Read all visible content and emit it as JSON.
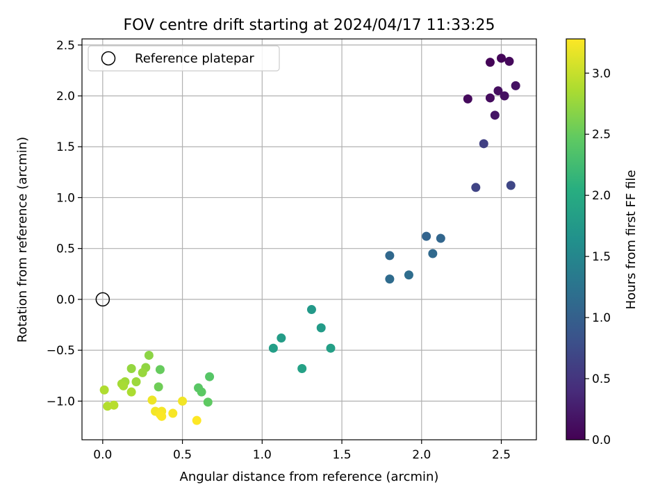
{
  "chart_data": {
    "type": "scatter",
    "title": "FOV centre drift starting at 2024/04/17 11:33:25",
    "xlabel": "Angular distance from reference (arcmin)",
    "ylabel": "Rotation from reference (arcmin)",
    "xlim": [
      -0.13,
      2.72
    ],
    "ylim": [
      -1.38,
      2.56
    ],
    "xticks": [
      0.0,
      0.5,
      1.0,
      1.5,
      2.0,
      2.5
    ],
    "xtick_labels": [
      "0.0",
      "0.5",
      "1.0",
      "1.5",
      "2.0",
      "2.5"
    ],
    "yticks": [
      -1.0,
      -0.5,
      0.0,
      0.5,
      1.0,
      1.5,
      2.0,
      2.5
    ],
    "ytick_labels": [
      "−1.0",
      "−0.5",
      "0.0",
      "0.5",
      "1.0",
      "1.5",
      "2.0",
      "2.5"
    ],
    "grid": true,
    "legend": {
      "placement": "top-left",
      "entries": [
        {
          "label": "Reference platepar",
          "marker": "open-circle"
        }
      ]
    },
    "reference_point": {
      "x": 0.0,
      "y": 0.0
    },
    "colorbar": {
      "label": "Hours from first FF file",
      "colormap": "viridis",
      "range": [
        0.0,
        3.28
      ],
      "ticks": [
        0.0,
        0.5,
        1.0,
        1.5,
        2.0,
        2.5,
        3.0
      ],
      "tick_labels": [
        "0.0",
        "0.5",
        "1.0",
        "1.5",
        "2.0",
        "2.5",
        "3.0"
      ]
    },
    "points": [
      {
        "x": 2.43,
        "y": 2.33,
        "c": 0.03
      },
      {
        "x": 2.5,
        "y": 2.37,
        "c": 0.05
      },
      {
        "x": 2.55,
        "y": 2.34,
        "c": 0.07
      },
      {
        "x": 2.29,
        "y": 1.97,
        "c": 0.08
      },
      {
        "x": 2.43,
        "y": 1.98,
        "c": 0.1
      },
      {
        "x": 2.48,
        "y": 2.05,
        "c": 0.12
      },
      {
        "x": 2.52,
        "y": 2.0,
        "c": 0.14
      },
      {
        "x": 2.59,
        "y": 2.1,
        "c": 0.16
      },
      {
        "x": 2.46,
        "y": 1.81,
        "c": 0.18
      },
      {
        "x": 2.39,
        "y": 1.53,
        "c": 0.62
      },
      {
        "x": 2.34,
        "y": 1.1,
        "c": 0.66
      },
      {
        "x": 2.56,
        "y": 1.12,
        "c": 0.7
      },
      {
        "x": 2.03,
        "y": 0.62,
        "c": 1.05
      },
      {
        "x": 2.12,
        "y": 0.6,
        "c": 1.07
      },
      {
        "x": 1.8,
        "y": 0.43,
        "c": 1.1
      },
      {
        "x": 2.07,
        "y": 0.45,
        "c": 1.12
      },
      {
        "x": 1.8,
        "y": 0.2,
        "c": 1.14
      },
      {
        "x": 1.92,
        "y": 0.24,
        "c": 1.16
      },
      {
        "x": 1.31,
        "y": -0.1,
        "c": 1.75
      },
      {
        "x": 1.37,
        "y": -0.28,
        "c": 1.78
      },
      {
        "x": 1.12,
        "y": -0.38,
        "c": 1.8
      },
      {
        "x": 1.07,
        "y": -0.48,
        "c": 1.82
      },
      {
        "x": 1.43,
        "y": -0.48,
        "c": 1.84
      },
      {
        "x": 1.25,
        "y": -0.68,
        "c": 1.86
      },
      {
        "x": 0.67,
        "y": -0.76,
        "c": 2.4
      },
      {
        "x": 0.6,
        "y": -0.87,
        "c": 2.42
      },
      {
        "x": 0.62,
        "y": -0.91,
        "c": 2.44
      },
      {
        "x": 0.66,
        "y": -1.01,
        "c": 2.46
      },
      {
        "x": 0.36,
        "y": -0.69,
        "c": 2.5
      },
      {
        "x": 0.35,
        "y": -0.86,
        "c": 2.55
      },
      {
        "x": 0.29,
        "y": -0.55,
        "c": 2.7
      },
      {
        "x": 0.27,
        "y": -0.67,
        "c": 2.72
      },
      {
        "x": 0.18,
        "y": -0.68,
        "c": 2.74
      },
      {
        "x": 0.25,
        "y": -0.72,
        "c": 2.76
      },
      {
        "x": 0.21,
        "y": -0.81,
        "c": 2.78
      },
      {
        "x": 0.14,
        "y": -0.81,
        "c": 2.8
      },
      {
        "x": 0.12,
        "y": -0.83,
        "c": 2.82
      },
      {
        "x": 0.13,
        "y": -0.85,
        "c": 2.84
      },
      {
        "x": 0.18,
        "y": -0.91,
        "c": 2.86
      },
      {
        "x": 0.01,
        "y": -0.89,
        "c": 2.88
      },
      {
        "x": 0.03,
        "y": -1.05,
        "c": 2.9
      },
      {
        "x": 0.07,
        "y": -1.04,
        "c": 2.92
      },
      {
        "x": 0.31,
        "y": -0.99,
        "c": 3.2
      },
      {
        "x": 0.5,
        "y": -1.0,
        "c": 3.22
      },
      {
        "x": 0.33,
        "y": -1.1,
        "c": 3.23
      },
      {
        "x": 0.37,
        "y": -1.1,
        "c": 3.24
      },
      {
        "x": 0.44,
        "y": -1.12,
        "c": 3.25
      },
      {
        "x": 0.36,
        "y": -1.13,
        "c": 3.26
      },
      {
        "x": 0.37,
        "y": -1.15,
        "c": 3.27
      },
      {
        "x": 0.59,
        "y": -1.19,
        "c": 3.28
      }
    ]
  }
}
